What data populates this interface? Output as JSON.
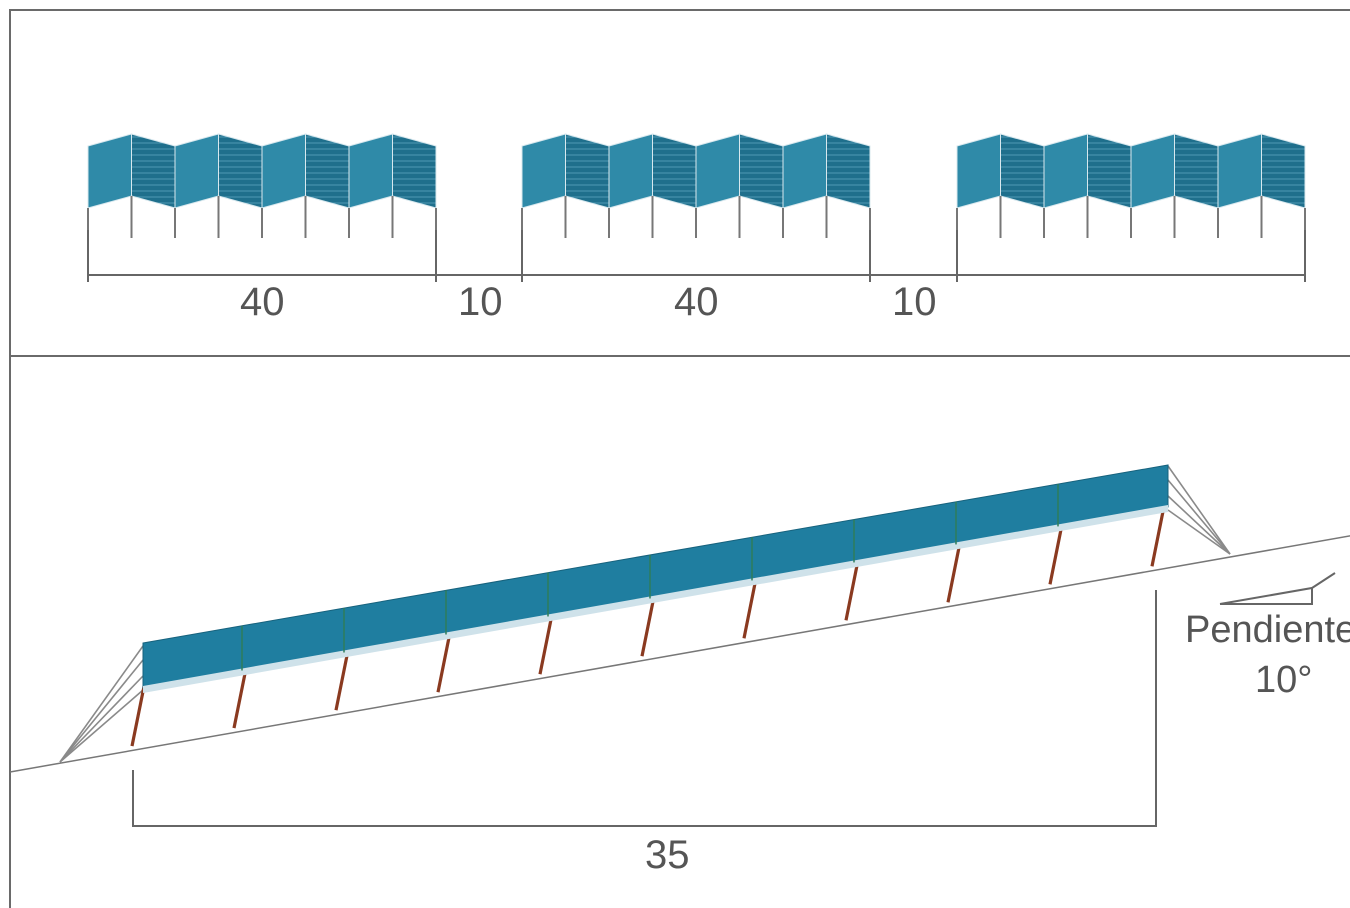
{
  "colors": {
    "panel_light": "#2f8aa8",
    "panel_dark": "#1f6f8c",
    "panel_stripe": "#5fa6bf",
    "post": "#8a3a20",
    "frame": "#6a6a6a"
  },
  "top_view": {
    "dims": [
      {
        "label": "40"
      },
      {
        "label": "10"
      },
      {
        "label": "40"
      },
      {
        "label": "10"
      }
    ]
  },
  "side_view": {
    "length_label": "35",
    "slope_label": "Pendiente",
    "angle_label": "10°"
  }
}
